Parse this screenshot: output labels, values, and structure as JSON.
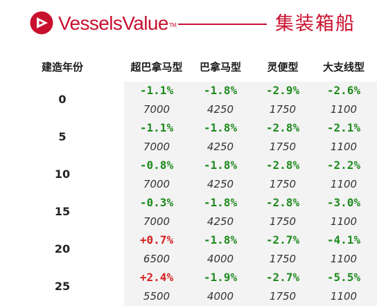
{
  "header": {
    "brand": "VesselsValue",
    "brand_tm": "TM",
    "title": "集装箱船",
    "accent_color": "#c8102e"
  },
  "table": {
    "columns": [
      "建造年份",
      "超巴拿马型",
      "巴拿马型",
      "灵便型",
      "大支线型"
    ],
    "rows": [
      {
        "age": "0",
        "changes": [
          "-1.1%",
          "-1.8%",
          "-2.9%",
          "-2.6%"
        ],
        "values": [
          "7000",
          "4250",
          "1750",
          "1100"
        ]
      },
      {
        "age": "5",
        "changes": [
          "-1.1%",
          "-1.8%",
          "-2.8%",
          "-2.1%"
        ],
        "values": [
          "7000",
          "4250",
          "1750",
          "1100"
        ]
      },
      {
        "age": "10",
        "changes": [
          "-0.8%",
          "-1.8%",
          "-2.8%",
          "-2.2%"
        ],
        "values": [
          "7000",
          "4250",
          "1750",
          "1100"
        ]
      },
      {
        "age": "15",
        "changes": [
          "-0.3%",
          "-1.8%",
          "-2.8%",
          "-3.0%"
        ],
        "values": [
          "7000",
          "4250",
          "1750",
          "1100"
        ]
      },
      {
        "age": "20",
        "changes": [
          "+0.7%",
          "-1.8%",
          "-2.7%",
          "-4.1%"
        ],
        "values": [
          "6500",
          "4000",
          "1750",
          "1100"
        ]
      },
      {
        "age": "25",
        "changes": [
          "+2.4%",
          "-1.9%",
          "-2.7%",
          "-5.5%"
        ],
        "values": [
          "5500",
          "4000",
          "1750",
          "1100"
        ]
      }
    ],
    "colors": {
      "negative": "#1e8a1e",
      "positive": "#d42020"
    }
  }
}
